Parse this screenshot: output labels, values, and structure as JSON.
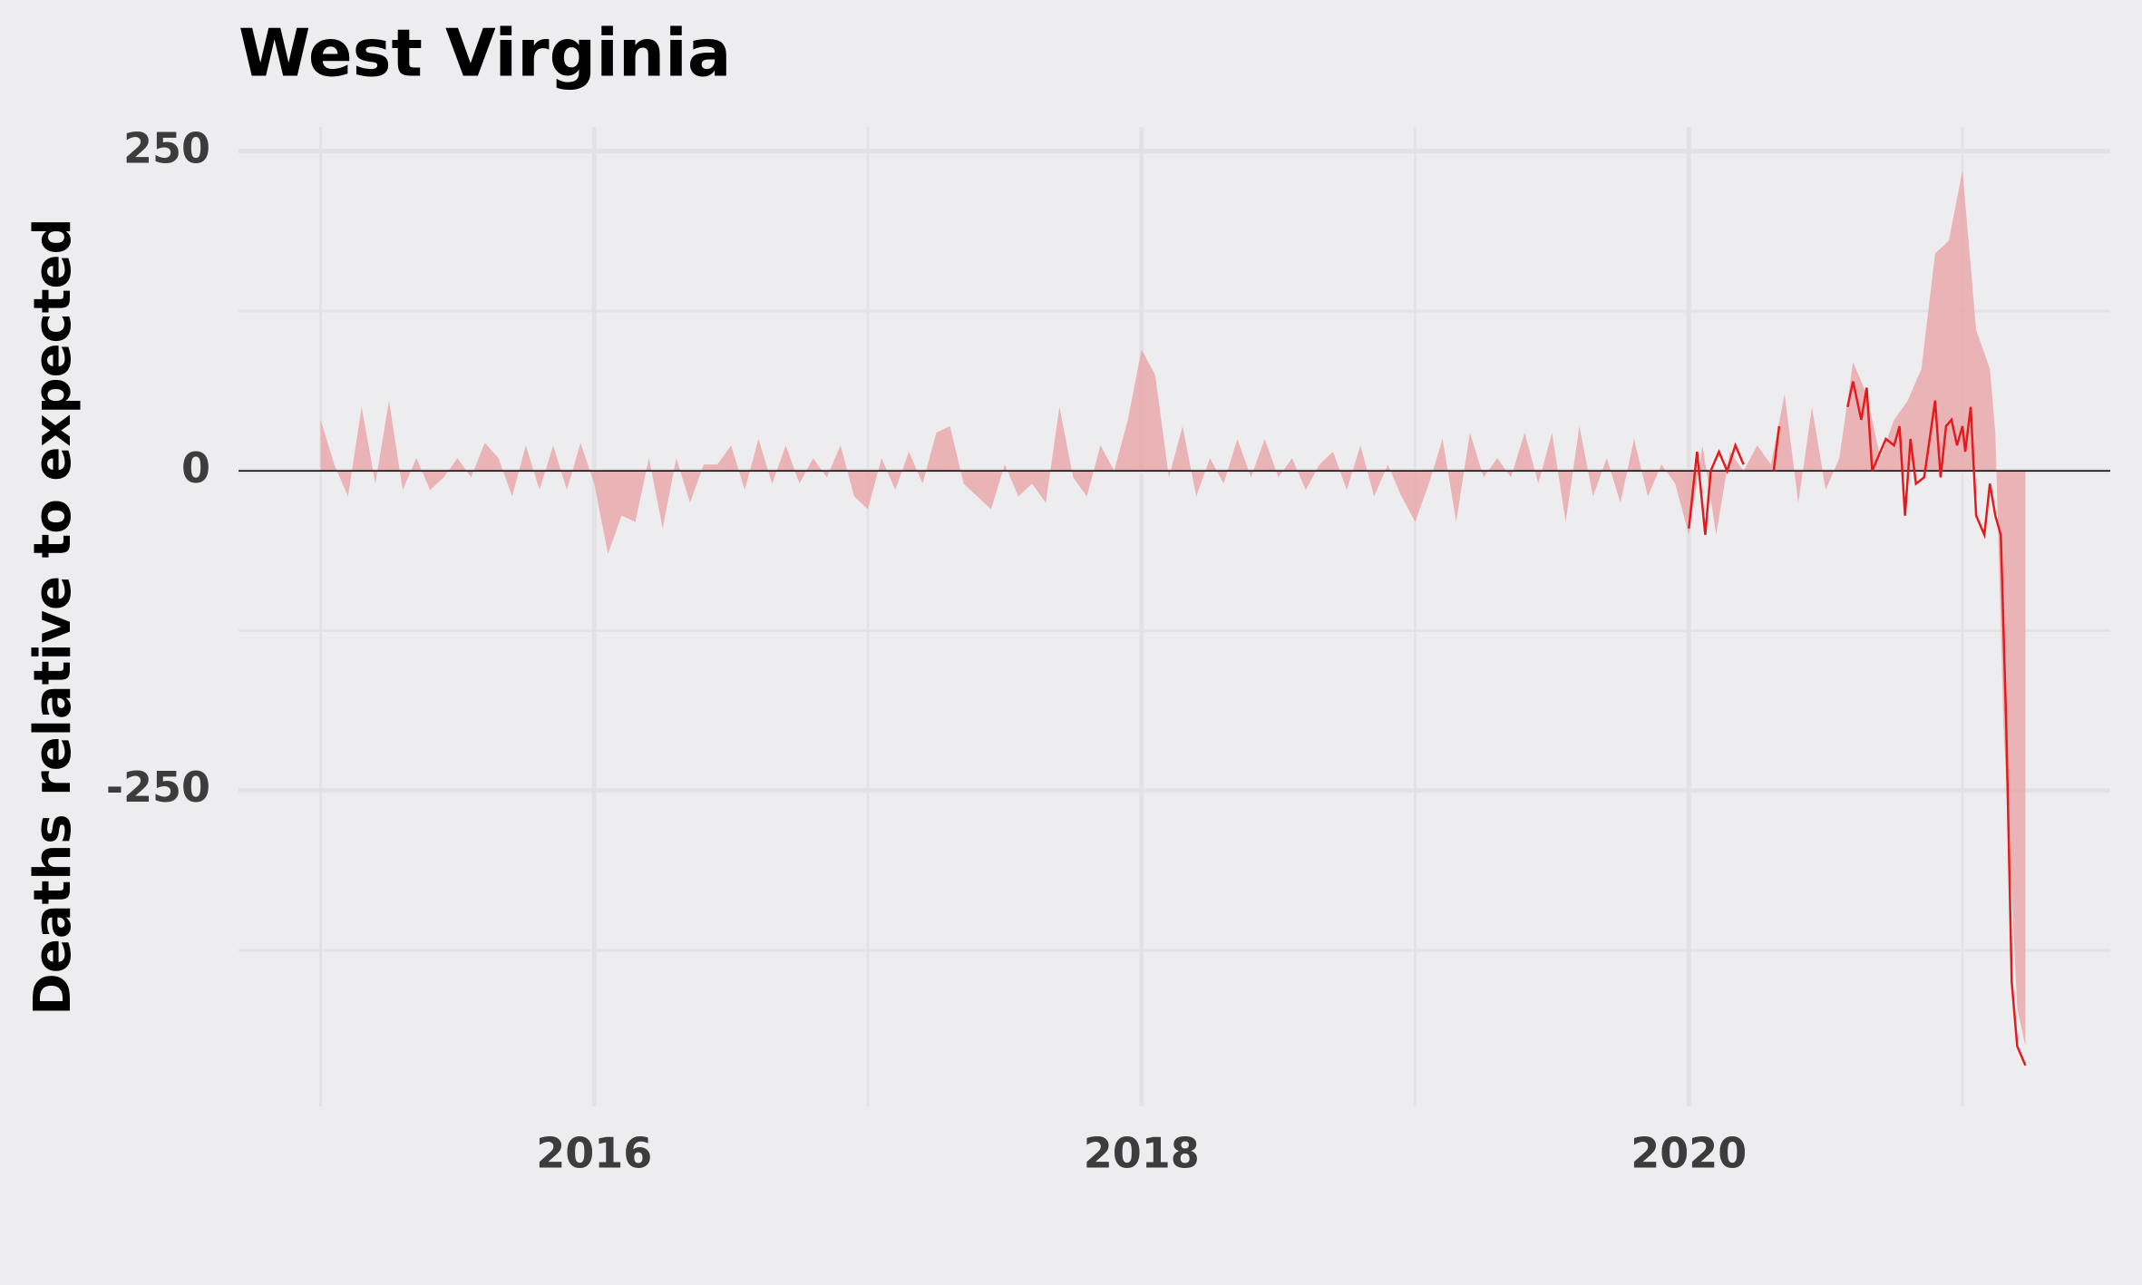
{
  "chart_data": {
    "type": "area",
    "title": "West Virginia",
    "y_label": "Deaths relative to expected",
    "xlim": [
      2014.7,
      2021.54
    ],
    "xticks": [
      2016,
      2018,
      2020
    ],
    "x_minor_ticks": [
      2015,
      2017,
      2019,
      2021
    ],
    "ylim": [
      -497,
      269
    ],
    "yticks": [
      -250,
      0,
      250
    ],
    "y_minor_ticks": [
      -375,
      -125,
      125
    ],
    "grid": true,
    "zero_line": true,
    "series": [
      {
        "kind": "area",
        "color": "#e8a5a7",
        "x": [
          2015.0,
          2015.05,
          2015.1,
          2015.15,
          2015.2,
          2015.25,
          2015.3,
          2015.35,
          2015.4,
          2015.45,
          2015.5,
          2015.55,
          2015.6,
          2015.65,
          2015.7,
          2015.75,
          2015.8,
          2015.85,
          2015.9,
          2015.95,
          2016.0,
          2016.05,
          2016.1,
          2016.15,
          2016.2,
          2016.25,
          2016.3,
          2016.35,
          2016.4,
          2016.45,
          2016.5,
          2016.55,
          2016.6,
          2016.65,
          2016.7,
          2016.75,
          2016.8,
          2016.85,
          2016.9,
          2016.95,
          2017.0,
          2017.05,
          2017.1,
          2017.15,
          2017.2,
          2017.25,
          2017.3,
          2017.35,
          2017.4,
          2017.45,
          2017.5,
          2017.55,
          2017.6,
          2017.65,
          2017.7,
          2017.75,
          2017.8,
          2017.85,
          2017.9,
          2017.95,
          2018.0,
          2018.05,
          2018.1,
          2018.15,
          2018.2,
          2018.25,
          2018.3,
          2018.35,
          2018.4,
          2018.45,
          2018.5,
          2018.55,
          2018.6,
          2018.65,
          2018.7,
          2018.75,
          2018.8,
          2018.85,
          2018.9,
          2018.95,
          2019.0,
          2019.05,
          2019.1,
          2019.15,
          2019.2,
          2019.25,
          2019.3,
          2019.35,
          2019.4,
          2019.45,
          2019.5,
          2019.55,
          2019.6,
          2019.65,
          2019.7,
          2019.75,
          2019.8,
          2019.85,
          2019.9,
          2019.95,
          2020.0,
          2020.05,
          2020.1,
          2020.15,
          2020.2,
          2020.25,
          2020.3,
          2020.35,
          2020.4,
          2020.45,
          2020.5,
          2020.55,
          2020.6,
          2020.65,
          2020.7,
          2020.75,
          2020.8,
          2020.85,
          2020.9,
          2020.95,
          2021.0,
          2021.05,
          2021.1,
          2021.12,
          2021.15,
          2021.2,
          2021.23
        ],
        "values": [
          40,
          5,
          -20,
          50,
          -10,
          55,
          -15,
          10,
          -15,
          -5,
          10,
          -5,
          22,
          10,
          -20,
          20,
          -15,
          20,
          -15,
          22,
          -10,
          -65,
          -35,
          -40,
          10,
          -45,
          10,
          -25,
          5,
          5,
          20,
          -15,
          25,
          -10,
          20,
          -10,
          10,
          -5,
          20,
          -20,
          -30,
          10,
          -15,
          15,
          -10,
          30,
          35,
          -10,
          -20,
          -30,
          5,
          -20,
          -10,
          -25,
          50,
          -5,
          -20,
          20,
          0,
          40,
          95,
          75,
          -5,
          35,
          -20,
          10,
          -10,
          25,
          -5,
          25,
          -5,
          10,
          -15,
          5,
          15,
          -15,
          20,
          -20,
          5,
          -20,
          -40,
          -10,
          25,
          -40,
          30,
          -5,
          10,
          -5,
          30,
          -10,
          30,
          -40,
          35,
          -20,
          10,
          -25,
          25,
          -20,
          5,
          -10,
          -50,
          20,
          -50,
          15,
          0,
          20,
          5,
          60,
          -25,
          50,
          -15,
          10,
          85,
          60,
          10,
          40,
          55,
          80,
          170,
          180,
          235,
          110,
          80,
          30,
          -200,
          -420,
          -450
        ]
      },
      {
        "kind": "line",
        "color": "#e41a1c",
        "x": [
          2020.0,
          2020.03,
          2020.06,
          2020.08,
          2020.11,
          2020.14,
          2020.17,
          2020.2,
          2020.25,
          2020.31,
          2020.33,
          2020.45,
          2020.58,
          2020.6,
          2020.63,
          2020.65,
          2020.67,
          2020.72,
          2020.75,
          2020.77,
          2020.79,
          2020.81,
          2020.83,
          2020.86,
          2020.88,
          2020.9,
          2020.92,
          2020.94,
          2020.96,
          2020.98,
          2021.0,
          2021.01,
          2021.03,
          2021.05,
          2021.08,
          2021.1,
          2021.12,
          2021.14,
          2021.16,
          2021.18,
          2021.2,
          2021.23
        ],
        "values": [
          -45,
          15,
          -50,
          0,
          15,
          0,
          20,
          5,
          null,
          0,
          35,
          null,
          50,
          70,
          40,
          65,
          0,
          25,
          20,
          35,
          -35,
          25,
          -10,
          -5,
          25,
          55,
          -5,
          35,
          40,
          20,
          35,
          15,
          50,
          -35,
          -50,
          -10,
          -35,
          -50,
          -200,
          -400,
          -450,
          -465
        ]
      }
    ]
  }
}
